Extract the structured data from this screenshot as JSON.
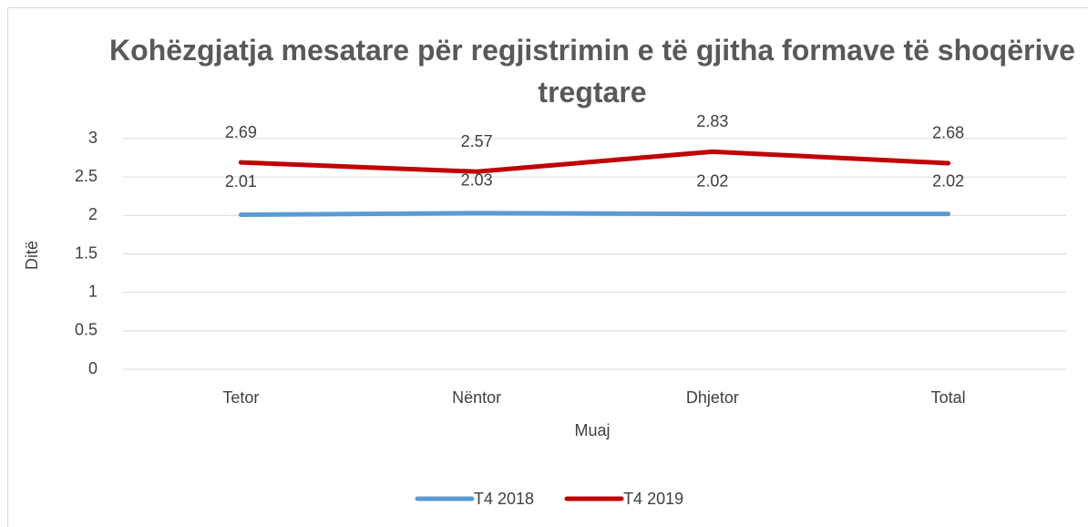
{
  "chart_data": {
    "type": "line",
    "title": "Kohëzgjatja mesatare për regjistrimin e të gjitha formave të shoqërive tregtare",
    "x_label": "Muaj",
    "y_label": "Ditë",
    "categories": [
      "Tetor",
      "Nëntor",
      "Dhjetor",
      "Total"
    ],
    "series": [
      {
        "name": "T4 2018",
        "color": "#5b9bd5",
        "values": [
          2.01,
          2.03,
          2.02,
          2.02
        ]
      },
      {
        "name": "T4 2019",
        "color": "#c00000",
        "values": [
          2.69,
          2.57,
          2.83,
          2.68
        ]
      }
    ],
    "ylim": [
      0,
      3
    ],
    "yticks": [
      0,
      0.5,
      1,
      1.5,
      2,
      2.5,
      3
    ],
    "grid": true,
    "legend": "bottom"
  }
}
